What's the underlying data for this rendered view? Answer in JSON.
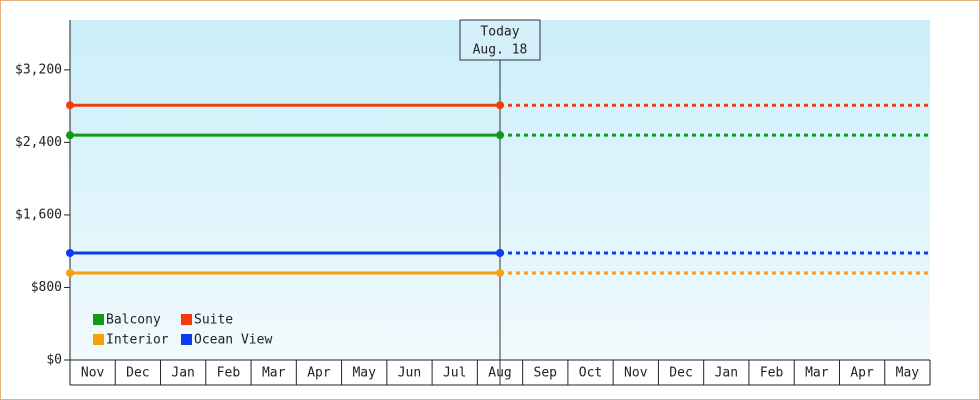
{
  "chart_data": {
    "type": "line",
    "categories": [
      "Nov",
      "Dec",
      "Jan",
      "Feb",
      "Mar",
      "Apr",
      "May",
      "Jun",
      "Jul",
      "Aug",
      "Sep",
      "Oct",
      "Nov",
      "Dec",
      "Jan",
      "Feb",
      "Mar",
      "Apr",
      "May"
    ],
    "series": [
      {
        "name": "Balcony",
        "color": "#13981a",
        "value": 2480
      },
      {
        "name": "Suite",
        "color": "#f23c0c",
        "value": 2810
      },
      {
        "name": "Interior",
        "color": "#f5a10c",
        "value": 960
      },
      {
        "name": "Ocean View",
        "color": "#0a3cf2",
        "value": 1180
      }
    ],
    "today": {
      "label": "Today",
      "date": "Aug. 18"
    },
    "ylim": [
      0,
      3750
    ],
    "yticks": [
      {
        "value": 0,
        "label": "$0"
      },
      {
        "value": 800,
        "label": "$800"
      },
      {
        "value": 1600,
        "label": "$1,600"
      },
      {
        "value": 2400,
        "label": "$2,400"
      },
      {
        "value": 3200,
        "label": "$3,200"
      }
    ]
  }
}
